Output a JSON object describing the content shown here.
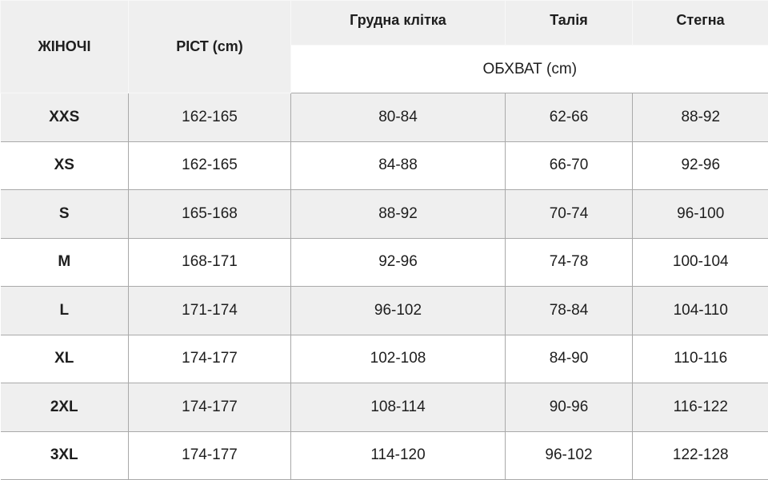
{
  "header": {
    "gender": "ЖІНОЧІ",
    "height": "РІСТ (cm)",
    "chest": "Грудна клітка",
    "waist": "Талія",
    "hips": "Стегна",
    "girth": "ОБХВАТ (cm)"
  },
  "rows": [
    {
      "size": "XXS",
      "height": "162-165",
      "chest": "80-84",
      "waist": "62-66",
      "hips": "88-92"
    },
    {
      "size": "XS",
      "height": "162-165",
      "chest": "84-88",
      "waist": "66-70",
      "hips": "92-96"
    },
    {
      "size": "S",
      "height": "165-168",
      "chest": "88-92",
      "waist": "70-74",
      "hips": "96-100"
    },
    {
      "size": "M",
      "height": "168-171",
      "chest": "92-96",
      "waist": "74-78",
      "hips": "100-104"
    },
    {
      "size": "L",
      "height": "171-174",
      "chest": "96-102",
      "waist": "78-84",
      "hips": "104-110"
    },
    {
      "size": "XL",
      "height": "174-177",
      "chest": "102-108",
      "waist": "84-90",
      "hips": "110-116"
    },
    {
      "size": "2XL",
      "height": "174-177",
      "chest": "108-114",
      "waist": "90-96",
      "hips": "116-122"
    },
    {
      "size": "3XL",
      "height": "174-177",
      "chest": "114-120",
      "waist": "96-102",
      "hips": "122-128"
    }
  ]
}
